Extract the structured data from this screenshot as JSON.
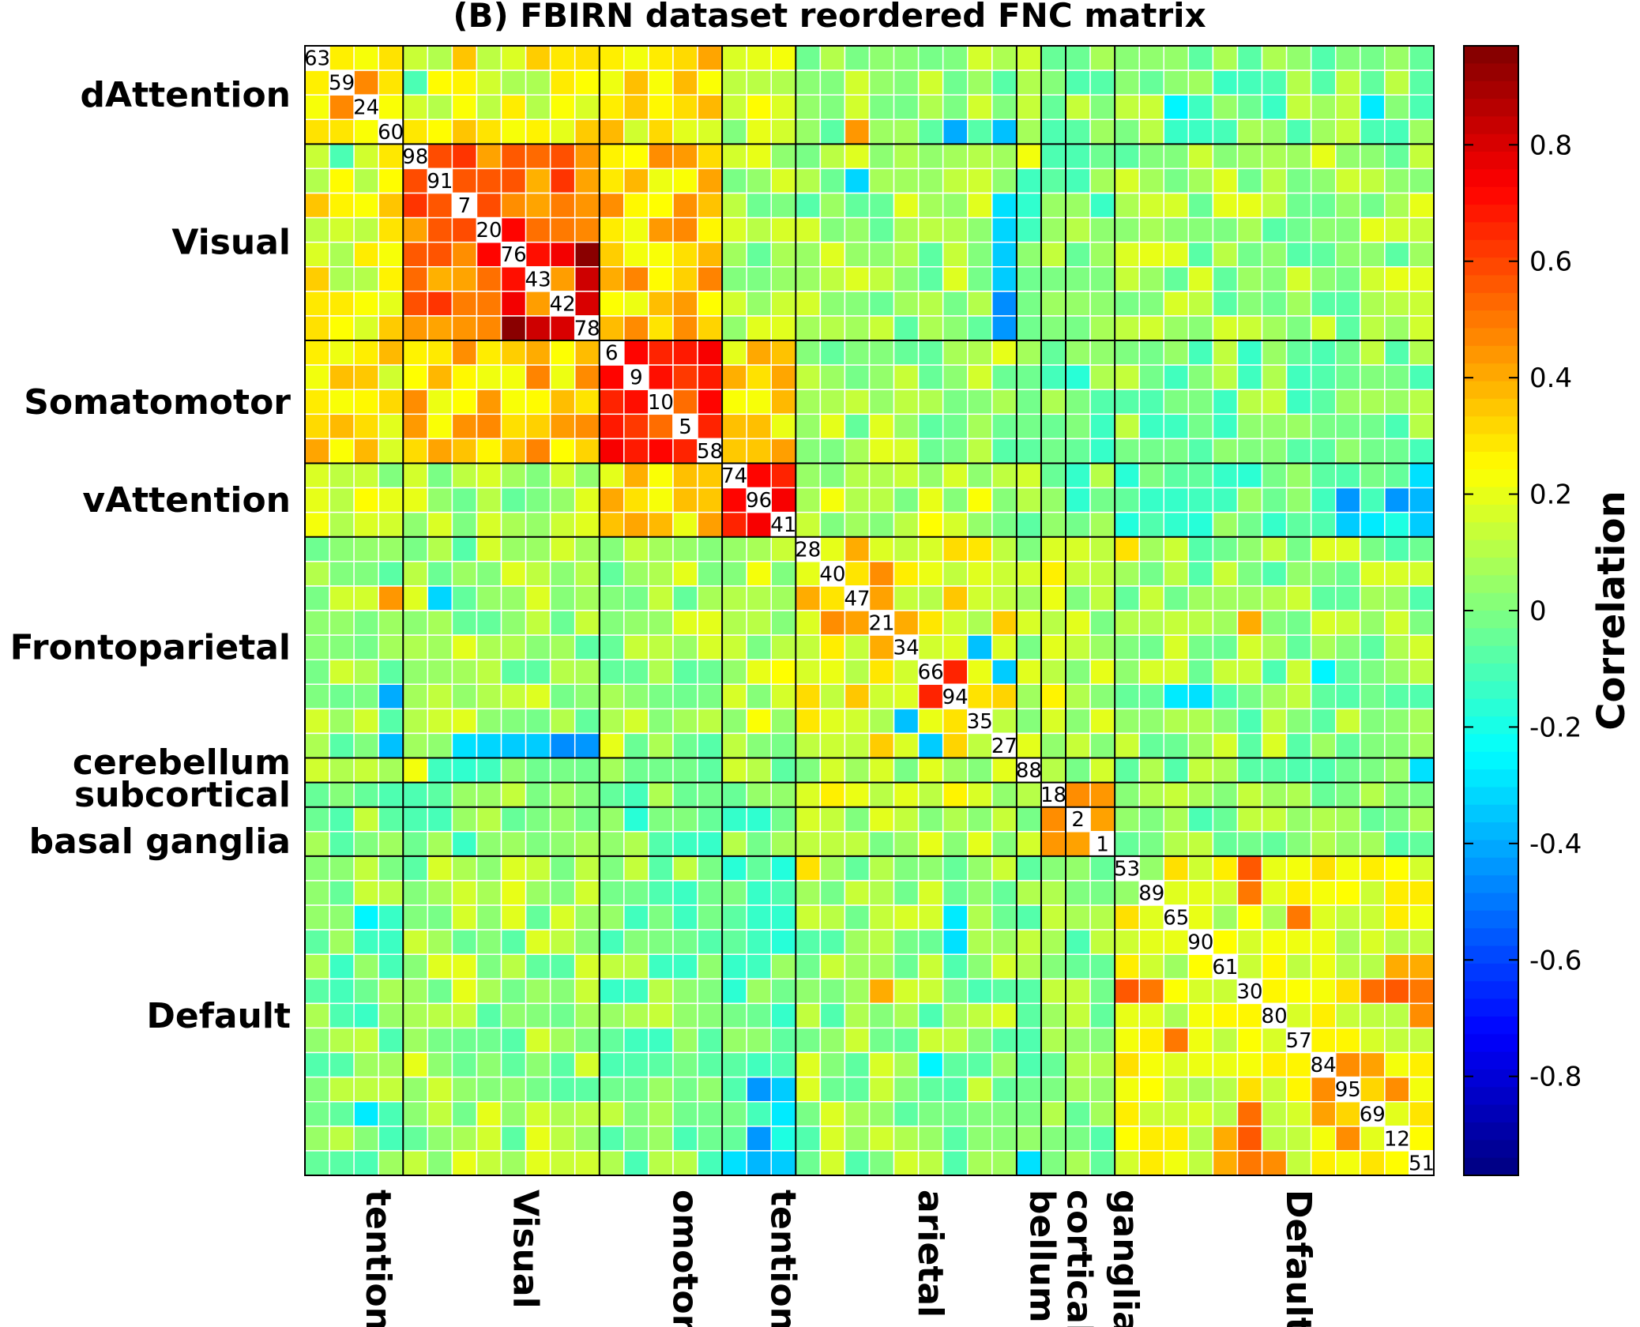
{
  "chart_data": {
    "type": "heatmap",
    "title": "(B) FBIRN dataset reordered FNC matrix",
    "networks": [
      {
        "name": "dAttention",
        "size": 4
      },
      {
        "name": "Visual",
        "size": 8
      },
      {
        "name": "Somatomotor",
        "size": 5
      },
      {
        "name": "vAttention",
        "size": 3
      },
      {
        "name": "Frontoparietal",
        "size": 9
      },
      {
        "name": "cerebellum",
        "size": 1
      },
      {
        "name": "subcortical",
        "size": 1
      },
      {
        "name": "basal ganglia",
        "size": 2
      },
      {
        "name": "Default",
        "size": 13
      }
    ],
    "x_tick_labels": [
      "tention",
      "Visual",
      "omotor",
      "tention",
      "arietal",
      "bellum",
      "cortical",
      "ganglia",
      "Default"
    ],
    "component_ids": [
      63,
      59,
      24,
      60,
      98,
      91,
      7,
      20,
      76,
      43,
      42,
      78,
      6,
      9,
      10,
      5,
      58,
      74,
      96,
      41,
      28,
      40,
      47,
      21,
      34,
      66,
      94,
      35,
      27,
      88,
      18,
      2,
      1,
      53,
      89,
      65,
      90,
      61,
      30,
      80,
      57,
      84,
      95,
      69,
      12,
      51
    ],
    "colorbar": {
      "label": "Correlation",
      "range": [
        -0.97,
        0.97
      ],
      "ticks": [
        0.8,
        0.6,
        0.4,
        0.2,
        0,
        -0.2,
        -0.4,
        -0.6,
        -0.8
      ],
      "tick_labels": [
        "0.8",
        "0.6",
        "0.4",
        "0.2",
        "0",
        "-0.2",
        "-0.4",
        "-0.6",
        "-0.8"
      ],
      "colormap": "jet"
    },
    "block_means": [
      [
        0.36,
        0.22,
        0.28,
        0.12,
        0.04,
        0.02,
        0.01,
        0.0,
        0.0
      ],
      [
        0.22,
        0.5,
        0.34,
        0.08,
        0.05,
        -0.07,
        0.0,
        -0.02,
        0.06
      ],
      [
        0.28,
        0.34,
        0.62,
        0.3,
        0.06,
        -0.04,
        0.01,
        -0.04,
        0.0
      ],
      [
        0.12,
        0.08,
        0.3,
        0.7,
        0.12,
        0.04,
        0.05,
        -0.02,
        -0.05
      ],
      [
        0.04,
        0.05,
        0.06,
        0.12,
        0.22,
        0.12,
        0.15,
        0.1,
        0.04
      ],
      [
        0.02,
        -0.07,
        -0.04,
        0.04,
        0.12,
        0.0,
        0.2,
        0.05,
        0.02
      ],
      [
        0.01,
        0.0,
        0.01,
        0.05,
        0.15,
        0.2,
        0.0,
        0.46,
        0.04
      ],
      [
        0.0,
        -0.02,
        -0.04,
        -0.02,
        0.1,
        0.05,
        0.46,
        0.44,
        0.03
      ],
      [
        0.0,
        0.06,
        0.0,
        -0.05,
        0.04,
        0.02,
        0.04,
        0.03,
        0.18
      ]
    ],
    "cell_overrides": [
      [
        8,
        11,
        0.95
      ],
      [
        10,
        11,
        0.8
      ],
      [
        9,
        11,
        0.82
      ],
      [
        8,
        10,
        0.75
      ],
      [
        7,
        8,
        0.72
      ],
      [
        8,
        9,
        0.7
      ],
      [
        12,
        13,
        0.72
      ],
      [
        12,
        14,
        0.66
      ],
      [
        13,
        14,
        0.7
      ],
      [
        15,
        16,
        0.66
      ],
      [
        13,
        15,
        0.62
      ],
      [
        17,
        18,
        0.72
      ],
      [
        17,
        19,
        0.66
      ],
      [
        18,
        19,
        0.74
      ],
      [
        25,
        26,
        0.66
      ],
      [
        21,
        23,
        0.46
      ],
      [
        22,
        23,
        0.42
      ],
      [
        23,
        24,
        0.4
      ],
      [
        20,
        22,
        0.4
      ],
      [
        30,
        31,
        0.46
      ],
      [
        30,
        32,
        0.44
      ],
      [
        31,
        32,
        0.42
      ],
      [
        3,
        22,
        0.44
      ],
      [
        3,
        26,
        -0.4
      ],
      [
        4,
        29,
        0.22
      ],
      [
        7,
        28,
        -0.32
      ],
      [
        8,
        28,
        -0.34
      ],
      [
        11,
        28,
        -0.4
      ],
      [
        18,
        45,
        -0.38
      ],
      [
        19,
        45,
        -0.34
      ],
      [
        18,
        44,
        -0.44
      ],
      [
        17,
        45,
        -0.3
      ],
      [
        33,
        38,
        0.56
      ],
      [
        38,
        43,
        0.52
      ],
      [
        38,
        44,
        0.56
      ],
      [
        38,
        45,
        0.5
      ],
      [
        38,
        33,
        0.56
      ],
      [
        41,
        42,
        0.46
      ],
      [
        41,
        43,
        0.42
      ],
      [
        42,
        44,
        0.46
      ],
      [
        37,
        44,
        0.4
      ],
      [
        37,
        45,
        0.4
      ],
      [
        40,
        35,
        0.5
      ],
      [
        39,
        45,
        0.46
      ],
      [
        34,
        38,
        0.5
      ],
      [
        24,
        27,
        -0.36
      ],
      [
        25,
        28,
        -0.34
      ],
      [
        28,
        3,
        -0.36
      ],
      [
        28,
        11,
        -0.44
      ],
      [
        6,
        28,
        -0.3
      ],
      [
        9,
        28,
        -0.34
      ],
      [
        10,
        28,
        -0.46
      ],
      [
        42,
        18,
        -0.44
      ],
      [
        42,
        19,
        -0.34
      ],
      [
        43,
        19,
        -0.28
      ],
      [
        1,
        4,
        -0.1
      ],
      [
        2,
        35,
        -0.26
      ],
      [
        2,
        43,
        -0.28
      ],
      [
        5,
        22,
        -0.32
      ],
      [
        26,
        35,
        -0.28
      ],
      [
        26,
        36,
        -0.3
      ],
      [
        25,
        41,
        -0.26
      ],
      [
        29,
        45,
        -0.3
      ],
      [
        23,
        38,
        0.4
      ],
      [
        20,
        33,
        0.3
      ]
    ]
  }
}
